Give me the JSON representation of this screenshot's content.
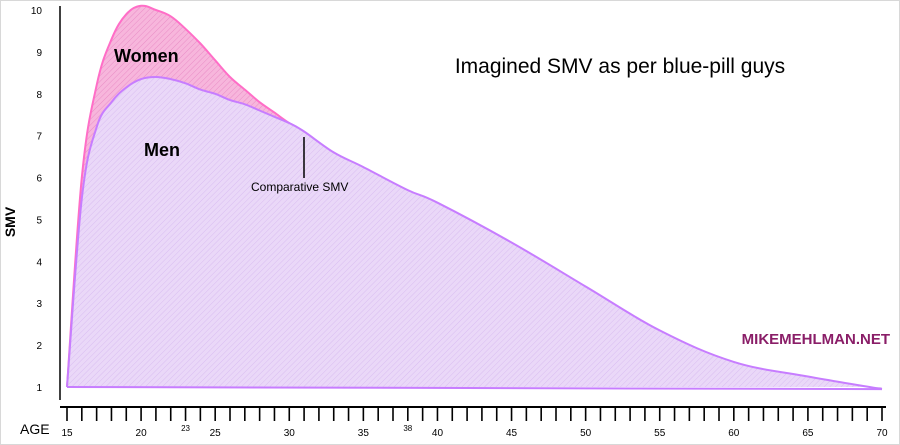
{
  "chart_data": {
    "type": "area",
    "title": "Imagined SMV as per blue-pill guys",
    "xlabel": "AGE",
    "ylabel": "SMV",
    "xlim": [
      15,
      70
    ],
    "ylim": [
      1,
      10
    ],
    "x_ticks": [
      15,
      20,
      23,
      25,
      30,
      35,
      38,
      40,
      45,
      50,
      55,
      60,
      65,
      70
    ],
    "y_ticks": [
      1,
      2,
      3,
      4,
      5,
      6,
      7,
      8,
      9,
      10
    ],
    "grid": false,
    "legend": "none",
    "series": [
      {
        "name": "Women",
        "color": "#ff66c4",
        "x": [
          15,
          16,
          17,
          18,
          19,
          20,
          21,
          22,
          23,
          24,
          25,
          26,
          27,
          28,
          29,
          30,
          31
        ],
        "values": [
          1.0,
          6.0,
          8.2,
          9.3,
          9.9,
          10.1,
          10.0,
          9.85,
          9.55,
          9.2,
          8.8,
          8.4,
          8.1,
          7.8,
          7.55,
          7.3,
          7.1
        ]
      },
      {
        "name": "Men",
        "color": "#c888ff",
        "x": [
          15,
          16,
          17,
          18,
          19,
          20,
          21,
          22,
          23,
          24,
          25,
          26,
          27,
          28,
          29,
          30,
          31,
          33,
          35,
          38,
          40,
          45,
          50,
          55,
          60,
          65,
          70
        ],
        "values": [
          1.0,
          5.5,
          7.2,
          7.8,
          8.15,
          8.35,
          8.4,
          8.35,
          8.25,
          8.1,
          8.0,
          7.85,
          7.75,
          7.6,
          7.45,
          7.3,
          7.1,
          6.6,
          6.25,
          5.7,
          5.4,
          4.45,
          3.4,
          2.35,
          1.6,
          1.25,
          0.95
        ]
      }
    ],
    "annotations": [
      {
        "text": "Comparative SMV",
        "x": 31,
        "y": 7.1
      }
    ],
    "watermark": "MIKEMEHLMAN.NET"
  }
}
